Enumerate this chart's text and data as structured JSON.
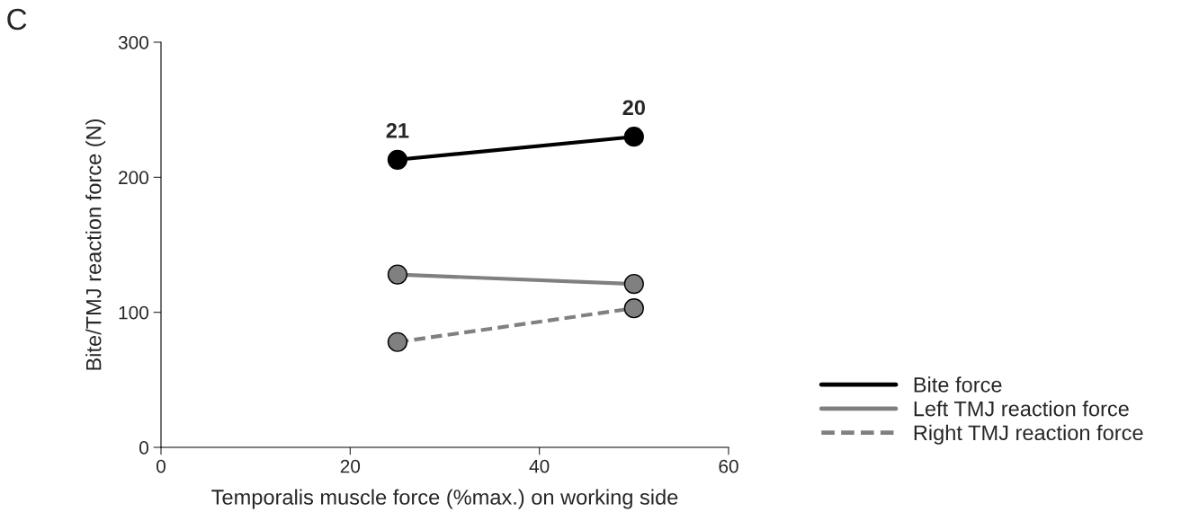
{
  "chart_data": {
    "type": "line",
    "xlabel": "Temporalis muscle force (%max.) on working side",
    "ylabel": "Bite/TMJ reaction force (N)",
    "x": [
      25,
      50
    ],
    "series": [
      {
        "name": "Bite force",
        "color": "#000000",
        "values": [
          213,
          230
        ],
        "line_style": "solid"
      },
      {
        "name": "Left TMJ reaction force",
        "color": "#808080",
        "values": [
          128,
          121
        ],
        "line_style": "solid"
      },
      {
        "name": "Right TMJ reaction force",
        "color": "#808080",
        "values": [
          78,
          103
        ],
        "line_style": "dashed"
      }
    ],
    "xlim": [
      0,
      60
    ],
    "xticks": [
      0,
      20,
      40,
      60
    ],
    "ylim": [
      0,
      300
    ],
    "yticks": [
      0,
      100,
      200,
      300
    ],
    "marker": "circle",
    "grid": false,
    "legend": "bottom right",
    "annotations": [
      "C",
      {
        "text": "21",
        "x": 25,
        "y": 213
      },
      {
        "text": "20",
        "x": 50,
        "y": 230
      }
    ]
  }
}
